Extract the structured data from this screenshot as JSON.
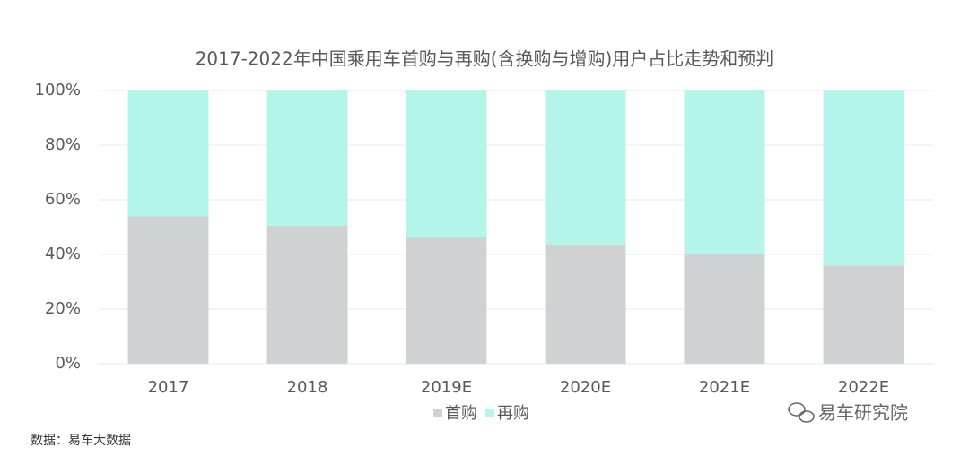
{
  "chart_data": {
    "type": "stacked_bar",
    "title": "2017-2022年中国乘用车首购与再购(含换购与增购)用户占比走势和预判",
    "categories": [
      "2017",
      "2018",
      "2019E",
      "2020E",
      "2021E",
      "2022E"
    ],
    "series": [
      {
        "name": "首购",
        "color": "#cfd1d3",
        "values": [
          54,
          50.5,
          46.5,
          43.5,
          40,
          36
        ]
      },
      {
        "name": "再购",
        "color": "#b3f5ea",
        "values": [
          46,
          49.5,
          53.5,
          56.5,
          60,
          64
        ]
      }
    ],
    "ylim": [
      0,
      100
    ],
    "yticks": [
      {
        "value": 0,
        "label": "0%"
      },
      {
        "value": 20,
        "label": "20%"
      },
      {
        "value": 40,
        "label": "40%"
      },
      {
        "value": 60,
        "label": "60%"
      },
      {
        "value": 80,
        "label": "80%"
      },
      {
        "value": 100,
        "label": "100%"
      }
    ],
    "grid": true,
    "source": "数据：易车大数据",
    "watermark": "易车研究院"
  }
}
